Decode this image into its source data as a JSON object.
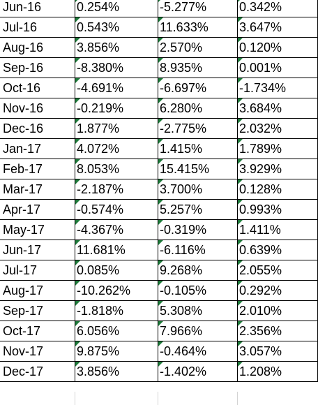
{
  "rows": [
    {
      "month": "Jun-16",
      "a": "0.254%",
      "b": "-5.277%",
      "c": "0.342%"
    },
    {
      "month": "Jul-16",
      "a": "0.543%",
      "b": "11.633%",
      "c": "3.647%"
    },
    {
      "month": "Aug-16",
      "a": "3.856%",
      "b": "2.570%",
      "c": "0.120%"
    },
    {
      "month": "Sep-16",
      "a": "-8.380%",
      "b": "8.935%",
      "c": "0.001%"
    },
    {
      "month": "Oct-16",
      "a": "-4.691%",
      "b": "-6.697%",
      "c": "-1.734%"
    },
    {
      "month": "Nov-16",
      "a": "-0.219%",
      "b": "6.280%",
      "c": "3.684%"
    },
    {
      "month": "Dec-16",
      "a": "1.877%",
      "b": "-2.775%",
      "c": "2.032%"
    },
    {
      "month": "Jan-17",
      "a": "4.072%",
      "b": "1.415%",
      "c": "1.789%"
    },
    {
      "month": "Feb-17",
      "a": "8.053%",
      "b": "15.415%",
      "c": "3.929%"
    },
    {
      "month": "Mar-17",
      "a": "-2.187%",
      "b": "3.700%",
      "c": "0.128%"
    },
    {
      "month": "Apr-17",
      "a": "-0.574%",
      "b": "5.257%",
      "c": "0.993%"
    },
    {
      "month": "May-17",
      "a": "-4.367%",
      "b": "-0.319%",
      "c": "1.411%"
    },
    {
      "month": "Jun-17",
      "a": "11.681%",
      "b": "-6.116%",
      "c": "0.639%"
    },
    {
      "month": "Jul-17",
      "a": "0.085%",
      "b": "9.268%",
      "c": "2.055%"
    },
    {
      "month": "Aug-17",
      "a": "-10.262%",
      "b": "-0.105%",
      "c": "0.292%"
    },
    {
      "month": "Sep-17",
      "a": "-1.818%",
      "b": "5.308%",
      "c": "2.010%"
    },
    {
      "month": "Oct-17",
      "a": "6.056%",
      "b": "7.966%",
      "c": "2.356%"
    },
    {
      "month": "Nov-17",
      "a": "9.875%",
      "b": "-0.464%",
      "c": "3.057%"
    },
    {
      "month": "Dec-17",
      "a": "3.856%",
      "b": "-1.402%",
      "c": "1.208%"
    }
  ],
  "colors": {
    "error_flag": "#1e7b3a",
    "gridline": "#000000",
    "empty_gridline": "#d4d4d4"
  },
  "icons": {
    "cell_indicator": "number-stored-as-text-indicator"
  }
}
